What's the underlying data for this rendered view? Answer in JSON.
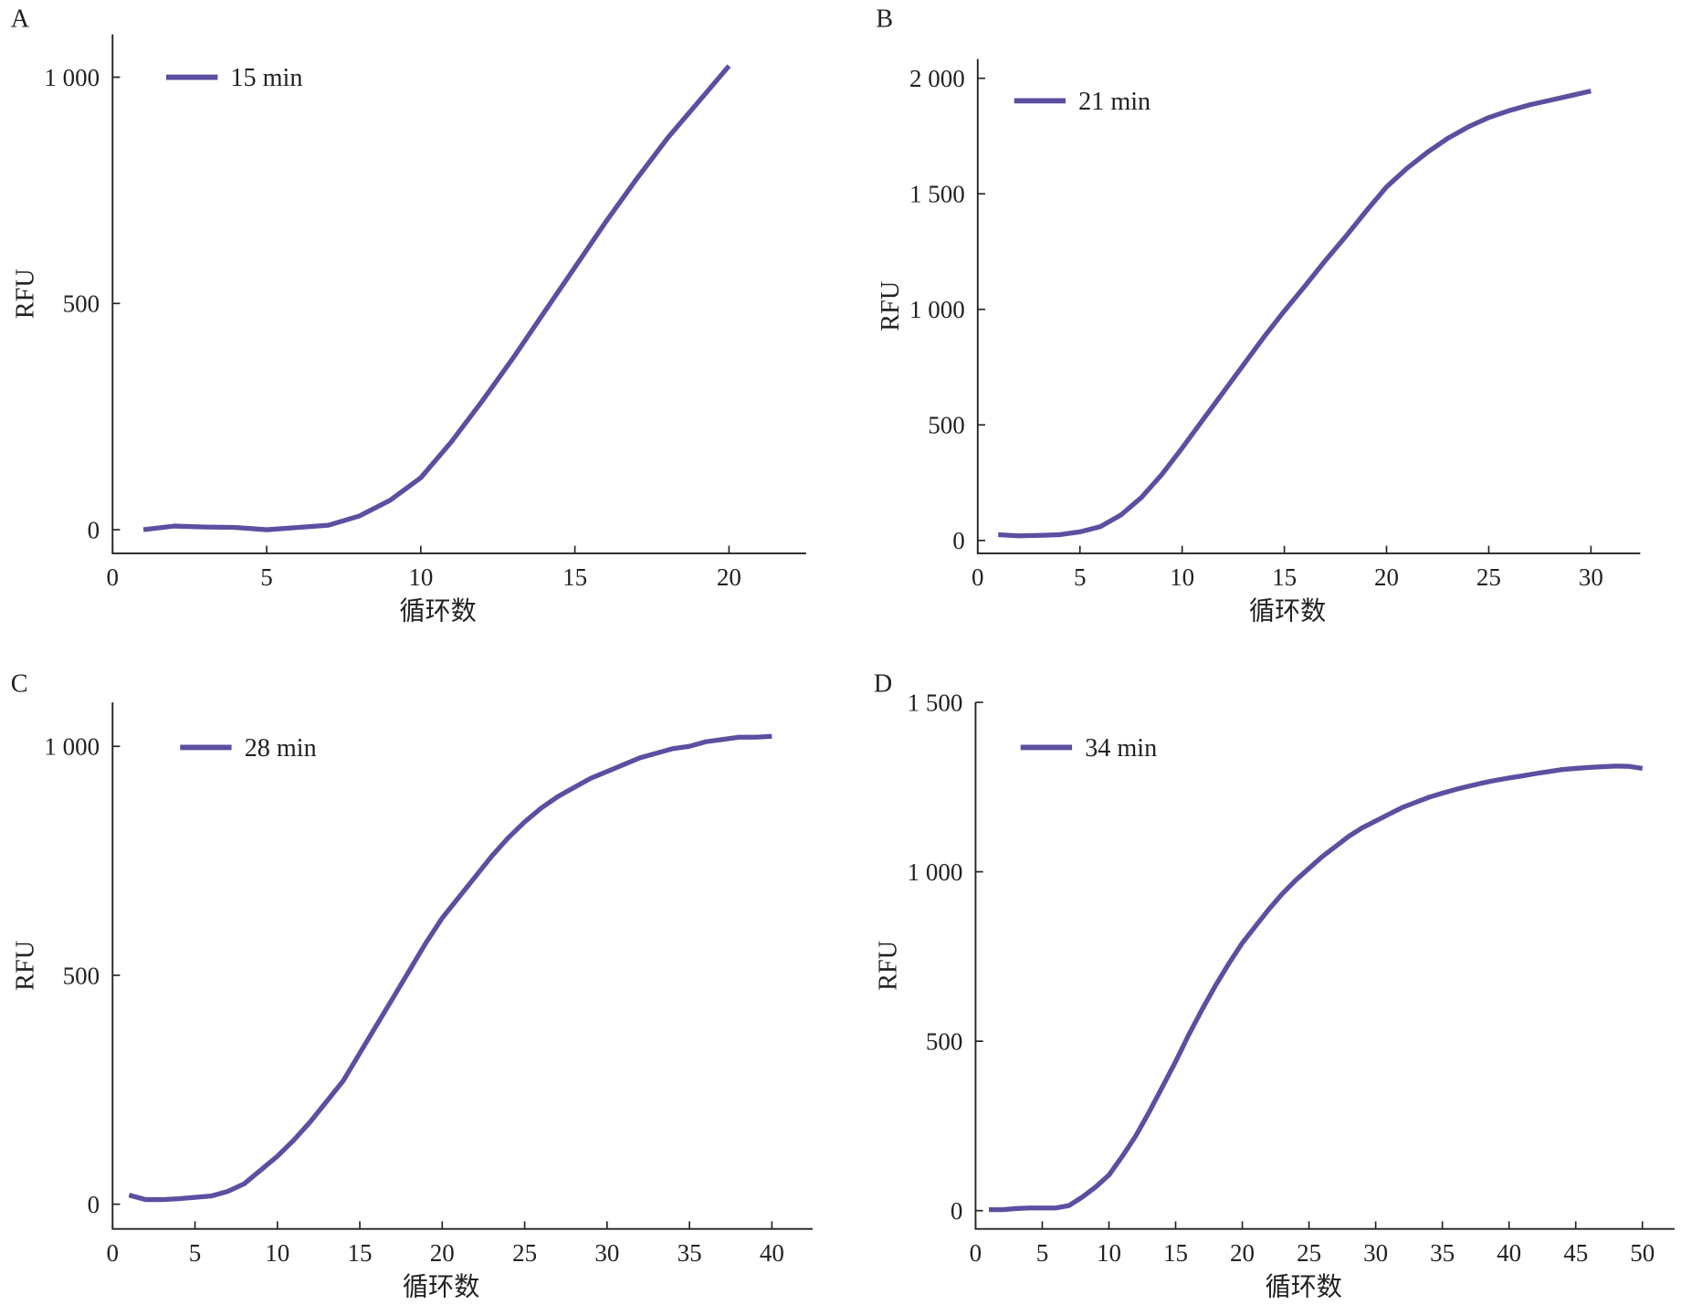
{
  "line_color": "#5b4fa0",
  "chart_data": [
    {
      "panel": "A",
      "type": "line",
      "legend": "15 min",
      "xlabel": "循环数",
      "ylabel": "RFU",
      "xlim": [
        0,
        22.5
      ],
      "ylim": [
        -50,
        1090
      ],
      "xticks": [
        0,
        5,
        10,
        15,
        20
      ],
      "yticks": [
        0,
        500,
        1000
      ],
      "ytick_labels": [
        "0",
        "500",
        "1 000"
      ],
      "xtick_labels": [
        "0",
        "5",
        "10",
        "15",
        "20"
      ],
      "x": [
        1,
        2,
        3,
        4,
        5,
        6,
        7,
        8,
        9,
        10,
        11,
        12,
        13,
        14,
        15,
        16,
        17,
        18,
        19,
        20
      ],
      "y": [
        0,
        8,
        6,
        5,
        0,
        5,
        10,
        30,
        65,
        115,
        195,
        285,
        380,
        480,
        580,
        680,
        775,
        865,
        945,
        1025
      ]
    },
    {
      "panel": "B",
      "type": "line",
      "legend": "21 min",
      "xlabel": "循环数",
      "ylabel": "RFU",
      "xlim": [
        0,
        32.5
      ],
      "ylim": [
        -55,
        2090
      ],
      "xticks": [
        0,
        5,
        10,
        15,
        20,
        25,
        30
      ],
      "yticks": [
        0,
        500,
        1000,
        1500,
        2000
      ],
      "ytick_labels": [
        "0",
        "500",
        "1 000",
        "1 500",
        "2 000"
      ],
      "xtick_labels": [
        "0",
        "5",
        "10",
        "15",
        "20",
        "25",
        "30"
      ],
      "x": [
        1,
        2,
        3,
        4,
        5,
        6,
        7,
        8,
        9,
        10,
        11,
        12,
        13,
        14,
        15,
        16,
        17,
        18,
        19,
        20,
        21,
        22,
        23,
        24,
        25,
        26,
        27,
        28,
        29,
        30
      ],
      "y": [
        25,
        20,
        22,
        25,
        37,
        60,
        110,
        185,
        285,
        400,
        520,
        640,
        760,
        880,
        993,
        1100,
        1210,
        1315,
        1425,
        1530,
        1610,
        1680,
        1740,
        1790,
        1830,
        1860,
        1885,
        1905,
        1925,
        1945
      ]
    },
    {
      "panel": "C",
      "type": "line",
      "legend": "28 min",
      "xlabel": "循环数",
      "ylabel": "RFU",
      "xlim": [
        0,
        42.5
      ],
      "ylim": [
        -55,
        1095
      ],
      "xticks": [
        0,
        5,
        10,
        15,
        20,
        25,
        30,
        35,
        40
      ],
      "yticks": [
        0,
        500,
        1000
      ],
      "ytick_labels": [
        "0",
        "500",
        "1 000"
      ],
      "xtick_labels": [
        "0",
        "5",
        "10",
        "15",
        "20",
        "25",
        "30",
        "35",
        "40"
      ],
      "x": [
        1,
        2,
        3,
        4,
        5,
        6,
        7,
        8,
        9,
        10,
        11,
        12,
        13,
        14,
        15,
        16,
        17,
        18,
        19,
        20,
        21,
        22,
        23,
        24,
        25,
        26,
        27,
        28,
        29,
        30,
        31,
        32,
        33,
        34,
        35,
        36,
        37,
        38,
        39,
        40
      ],
      "y": [
        20,
        10,
        10,
        12,
        15,
        18,
        28,
        45,
        75,
        105,
        140,
        180,
        225,
        270,
        330,
        390,
        450,
        510,
        570,
        625,
        670,
        715,
        760,
        800,
        835,
        865,
        890,
        910,
        930,
        945,
        960,
        975,
        985,
        995,
        1000,
        1010,
        1015,
        1020,
        1020,
        1022
      ]
    },
    {
      "panel": "D",
      "type": "line",
      "legend": "34 min",
      "xlabel": "循环数",
      "ylabel": "RFU",
      "xlim": [
        0,
        52
      ],
      "ylim": [
        -55,
        1500
      ],
      "xticks": [
        0,
        5,
        10,
        15,
        20,
        25,
        30,
        35,
        40,
        45,
        50
      ],
      "yticks": [
        0,
        500,
        1000,
        1500
      ],
      "ytick_labels": [
        "0",
        "500",
        "1 000",
        "1 500"
      ],
      "xtick_labels": [
        "0",
        "5",
        "10",
        "15",
        "20",
        "25",
        "30",
        "35",
        "40",
        "45",
        "50"
      ],
      "x": [
        1,
        2,
        3,
        4,
        5,
        6,
        7,
        8,
        9,
        10,
        11,
        12,
        13,
        14,
        15,
        16,
        17,
        18,
        19,
        20,
        21,
        22,
        23,
        24,
        25,
        26,
        27,
        28,
        29,
        30,
        31,
        32,
        33,
        34,
        35,
        36,
        37,
        38,
        39,
        40,
        41,
        42,
        43,
        44,
        45,
        46,
        47,
        48,
        49,
        50
      ],
      "y": [
        3,
        3,
        6,
        8,
        8,
        8,
        15,
        40,
        70,
        105,
        160,
        220,
        290,
        365,
        440,
        520,
        595,
        665,
        730,
        790,
        840,
        890,
        935,
        975,
        1010,
        1045,
        1075,
        1105,
        1130,
        1150,
        1170,
        1190,
        1205,
        1220,
        1232,
        1243,
        1253,
        1262,
        1270,
        1277,
        1283,
        1290,
        1296,
        1302,
        1305,
        1308,
        1310,
        1312,
        1311,
        1305
      ]
    }
  ]
}
